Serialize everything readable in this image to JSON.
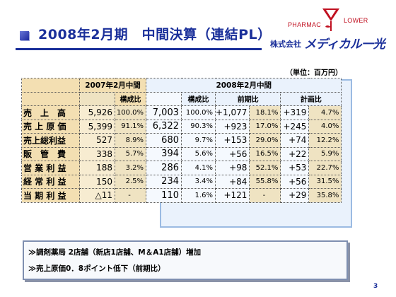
{
  "title": "2008年2月期　中間決算（連結PL）",
  "logo": {
    "pharmac": "PHARMAC",
    "lower": "LOWER",
    "company": "株式会社",
    "brand": "メディカル一光"
  },
  "unit": "（単位：百万円）",
  "table": {
    "header_2007": "2007年2月中間",
    "header_2008": "2008年2月中間",
    "sub_composition_2007": "構成比",
    "sub_composition_2008": "構成比",
    "sub_yoy": "前期比",
    "sub_plan": "計画比",
    "rows": [
      {
        "label": "売　上　高",
        "v2007": "5,926",
        "r2007": "100.0%",
        "v2008": "7,003",
        "r2008": "100.0%",
        "yoy_diff": "+1,077",
        "yoy_pct": "18.1%",
        "plan_diff": "+319",
        "plan_pct": "4.7%"
      },
      {
        "label": "売 上 原 価",
        "v2007": "5,399",
        "r2007": "91.1%",
        "v2008": "6,322",
        "r2008": "90.3%",
        "yoy_diff": "+923",
        "yoy_pct": "17.0%",
        "plan_diff": "+245",
        "plan_pct": "4.0%"
      },
      {
        "label": "売上総利益",
        "v2007": "527",
        "r2007": "8.9%",
        "v2008": "680",
        "r2008": "9.7%",
        "yoy_diff": "+153",
        "yoy_pct": "29.0%",
        "plan_diff": "+74",
        "plan_pct": "12.2%"
      },
      {
        "label": "販　管　費",
        "v2007": "338",
        "r2007": "5.7%",
        "v2008": "394",
        "r2008": "5.6%",
        "yoy_diff": "+56",
        "yoy_pct": "16.5%",
        "plan_diff": "+22",
        "plan_pct": "5.9%"
      },
      {
        "label": "営 業 利 益",
        "v2007": "188",
        "r2007": "3.2%",
        "v2008": "286",
        "r2008": "4.1%",
        "yoy_diff": "+98",
        "yoy_pct": "52.1%",
        "plan_diff": "+53",
        "plan_pct": "22.7%"
      },
      {
        "label": "経 常 利 益",
        "v2007": "150",
        "r2007": "2.5%",
        "v2008": "234",
        "r2008": "3.4%",
        "yoy_diff": "+84",
        "yoy_pct": "55.8%",
        "plan_diff": "+56",
        "plan_pct": "31.5%"
      },
      {
        "label": "当 期 利 益",
        "v2007": "△11",
        "r2007": "-",
        "v2008": "110",
        "r2008": "1.6%",
        "yoy_diff": "+121",
        "yoy_pct": "-",
        "plan_diff": "+29",
        "plan_pct": "35.8%"
      }
    ]
  },
  "notes": [
    "≫調剤薬局 2店舗（新店1店舗、M＆A1店舗）増加",
    "≫売上原価0．8ポイント低下（前期比）"
  ],
  "page_number": "3",
  "colors": {
    "title_blue": "#1a2f9a",
    "tan": "#f3dfb2",
    "light_blue": "#eaf2fc",
    "logo_red": "#c01020"
  }
}
